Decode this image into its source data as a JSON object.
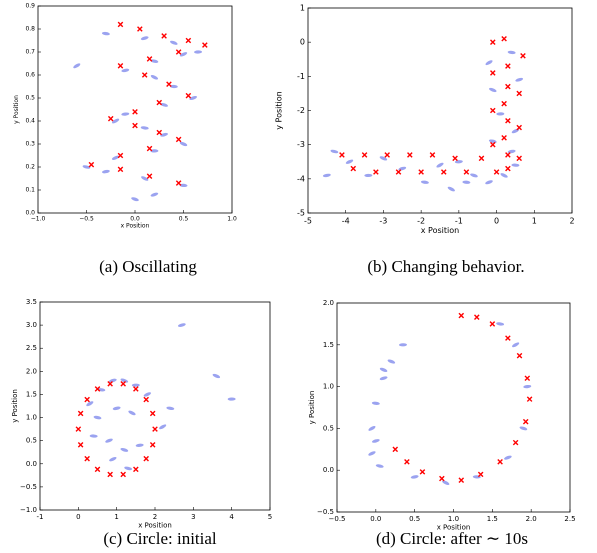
{
  "chart_data": [
    {
      "type": "scatter",
      "caption": "(a) Oscillating",
      "xlabel": "x Position",
      "ylabel": "y Position",
      "xlim": [
        -1,
        1
      ],
      "xticks": [
        {
          "value": -1,
          "label": "−1.0"
        },
        {
          "value": -0.5,
          "label": "−0.5"
        },
        {
          "value": 0,
          "label": "0.0"
        },
        0.5,
        {
          "value": 1,
          "label": "1.0"
        }
      ],
      "ylim": [
        0,
        0.9
      ],
      "yticks": [
        {
          "value": 0,
          "label": "0.0"
        },
        0.1,
        0.2,
        0.3,
        0.4,
        0.5,
        0.6,
        0.7,
        0.8,
        0.9
      ],
      "series": [
        {
          "marker": "blob",
          "color": "#2233dd",
          "x": [
            -0.6,
            -0.3,
            0.1,
            0.4,
            0.65,
            0.5,
            0.2,
            -0.1,
            0.2,
            0.4,
            0.6,
            0.3,
            -0.1,
            -0.2,
            0.1,
            0.3,
            0.5,
            0.2,
            -0.2,
            -0.5,
            -0.3,
            0.1,
            0.5,
            0.2,
            0.0
          ],
          "values": [
            0.64,
            0.78,
            0.76,
            0.74,
            0.7,
            0.69,
            0.66,
            0.62,
            0.59,
            0.55,
            0.5,
            0.47,
            0.43,
            0.4,
            0.37,
            0.34,
            0.3,
            0.27,
            0.24,
            0.2,
            0.18,
            0.15,
            0.12,
            0.08,
            0.06
          ]
        },
        {
          "marker": "x",
          "color": "#ff0000",
          "x": [
            -0.15,
            0.05,
            0.3,
            0.55,
            0.72,
            0.45,
            0.15,
            -0.15,
            0.1,
            0.35,
            0.55,
            0.25,
            0,
            -0.25,
            0,
            0.25,
            0.45,
            0.15,
            -0.15,
            -0.45,
            -0.15,
            0.15,
            0.45
          ],
          "values": [
            0.82,
            0.8,
            0.77,
            0.75,
            0.73,
            0.7,
            0.67,
            0.64,
            0.6,
            0.56,
            0.51,
            0.48,
            0.44,
            0.41,
            0.38,
            0.35,
            0.32,
            0.28,
            0.25,
            0.21,
            0.19,
            0.16,
            0.13
          ]
        }
      ]
    },
    {
      "type": "scatter",
      "caption": "(b) Changing behavior.",
      "xlabel": "x Position",
      "ylabel": "y Position",
      "xlim": [
        -5,
        2
      ],
      "xticks": [
        -5,
        -4,
        -3,
        -2,
        -1,
        0,
        1,
        2
      ],
      "ylim": [
        -5,
        1
      ],
      "yticks": [
        -5,
        -4,
        -3,
        -2,
        -1,
        0,
        1
      ],
      "series": [
        {
          "marker": "blob",
          "color": "#2233dd",
          "x": [
            -0.2,
            0.4,
            0.6,
            -0.1,
            0.1,
            0.5,
            -0.1,
            0.4,
            0.2,
            0.5,
            -0.2,
            -0.6,
            -1,
            -1.5,
            -1.9,
            -2.5,
            -3,
            -3.4,
            -3.9,
            -4.3,
            -4.5,
            -1.2,
            -0.8
          ],
          "values": [
            -0.6,
            -0.3,
            -1.1,
            -1.4,
            -2.1,
            -2.6,
            -2.9,
            -3.2,
            -3.9,
            -3.6,
            -4.1,
            -3.9,
            -3.5,
            -3.6,
            -4.1,
            -3.7,
            -3.4,
            -3.9,
            -3.5,
            -3.2,
            -3.9,
            -4.3,
            -4.1
          ]
        },
        {
          "marker": "x",
          "color": "#ff0000",
          "x": [
            -0.1,
            0.2,
            0.7,
            0.3,
            -0.1,
            0.3,
            0.6,
            0.2,
            -0.1,
            0.3,
            0.6,
            0.2,
            -0.1,
            0.3,
            0.6,
            0.3,
            0,
            -0.4,
            -0.8,
            -1.1,
            -1.4,
            -1.7,
            -2,
            -2.3,
            -2.6,
            -2.9,
            -3.2,
            -3.5,
            -3.8,
            -4.1
          ],
          "values": [
            0,
            0.1,
            -0.4,
            -0.7,
            -0.9,
            -1.3,
            -1.5,
            -1.8,
            -2,
            -2.3,
            -2.5,
            -2.8,
            -3,
            -3.3,
            -3.4,
            -3.7,
            -3.8,
            -3.4,
            -3.8,
            -3.4,
            -3.8,
            -3.3,
            -3.8,
            -3.3,
            -3.8,
            -3.3,
            -3.8,
            -3.3,
            -3.7,
            -3.3
          ]
        }
      ]
    },
    {
      "type": "scatter",
      "caption": "(c) Circle: initial",
      "xlabel": "x Position",
      "ylabel": "y Position",
      "xlim": [
        -1,
        5
      ],
      "xticks": [
        -1,
        0,
        1,
        2,
        3,
        4,
        5
      ],
      "ylim": [
        -1,
        3.5
      ],
      "yticks": [
        {
          "value": -1,
          "label": "−1.0"
        },
        {
          "value": -0.5,
          "label": "−0.5"
        },
        {
          "value": 0,
          "label": "0.0"
        },
        0.5,
        {
          "value": 1,
          "label": "1.0"
        },
        1.5,
        {
          "value": 2,
          "label": "2.0"
        },
        2.5,
        {
          "value": 3,
          "label": "3.0"
        },
        3.5
      ],
      "series": [
        {
          "marker": "blob",
          "color": "#2233dd",
          "x": [
            0.3,
            0.6,
            0.9,
            1.2,
            1.5,
            1.8,
            0.5,
            1.0,
            1.4,
            0.4,
            0.8,
            1.2,
            1.6,
            2.2,
            2.4,
            2.7,
            3.6,
            4.0,
            0.9,
            1.3
          ],
          "values": [
            1.3,
            1.6,
            1.8,
            1.8,
            1.7,
            1.5,
            1.0,
            1.2,
            1.1,
            0.6,
            0.5,
            0.3,
            0.4,
            0.8,
            1.2,
            3.0,
            1.9,
            1.4,
            0.1,
            -0.1
          ]
        },
        {
          "marker": "x",
          "color": "#ff0000",
          "x": [
            2.0,
            1.94,
            1.77,
            1.5,
            1.17,
            0.83,
            0.5,
            0.23,
            0.06,
            0,
            0.06,
            0.23,
            0.5,
            0.83,
            1.17,
            1.5,
            1.77,
            1.94
          ],
          "values": [
            0.75,
            1.09,
            1.39,
            1.62,
            1.73,
            1.73,
            1.62,
            1.39,
            1.09,
            0.75,
            0.41,
            0.11,
            -0.12,
            -0.23,
            -0.23,
            -0.12,
            0.11,
            0.41
          ]
        }
      ]
    },
    {
      "type": "scatter",
      "caption": "(d) Circle: after ∼ 10s",
      "xlabel": "x Position",
      "ylabel": "y Position",
      "xlim": [
        -0.5,
        2.5
      ],
      "xticks": [
        {
          "value": -0.5,
          "label": "−0.5"
        },
        {
          "value": 0,
          "label": "0.0"
        },
        0.5,
        {
          "value": 1,
          "label": "1.0"
        },
        1.5,
        {
          "value": 2,
          "label": "2.0"
        },
        2.5
      ],
      "ylim": [
        -0.5,
        2
      ],
      "yticks": [
        {
          "value": -0.5,
          "label": "−0.5"
        },
        {
          "value": 0,
          "label": "0.0"
        },
        0.5,
        {
          "value": 1,
          "label": "1.0"
        },
        1.5,
        {
          "value": 2,
          "label": "2.0"
        }
      ],
      "series": [
        {
          "marker": "blob",
          "color": "#2233dd",
          "x": [
            -0.05,
            0.0,
            0.1,
            0.2,
            0.35,
            -0.05,
            0.05,
            0.5,
            0.9,
            1.3,
            1.7,
            1.9,
            1.95,
            1.8,
            1.6,
            0.0,
            0.1
          ],
          "values": [
            0.5,
            0.8,
            1.1,
            1.3,
            1.5,
            0.2,
            0.05,
            -0.08,
            -0.15,
            -0.08,
            0.15,
            0.5,
            1.0,
            1.5,
            1.75,
            0.35,
            1.2
          ]
        },
        {
          "marker": "x",
          "color": "#ff0000",
          "x": [
            1.1,
            1.3,
            1.5,
            1.7,
            1.85,
            1.95,
            1.98,
            1.93,
            1.8,
            1.6,
            1.35,
            1.1,
            0.85,
            0.6,
            0.4,
            0.25
          ],
          "values": [
            1.85,
            1.83,
            1.75,
            1.58,
            1.37,
            1.1,
            0.85,
            0.58,
            0.33,
            0.1,
            -0.05,
            -0.12,
            -0.1,
            -0.02,
            0.1,
            0.25
          ]
        }
      ]
    }
  ]
}
